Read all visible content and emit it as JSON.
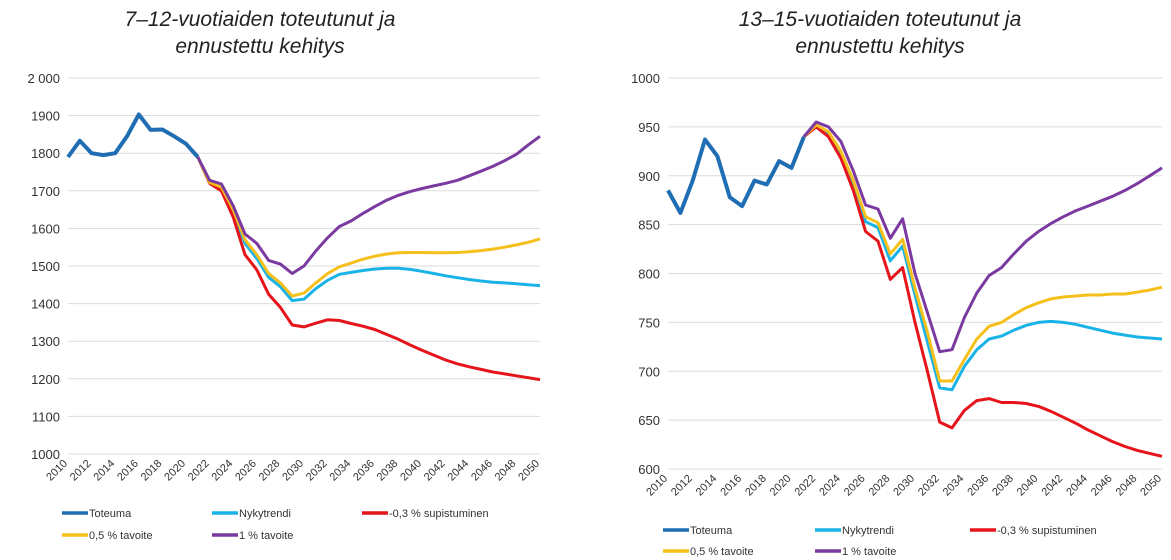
{
  "chart_data": [
    {
      "type": "line",
      "title": "7–12-vuotiaiden toteutunut ja ennustettu kehitys",
      "categories": [
        "2010",
        null,
        "2012",
        null,
        "2014",
        null,
        "2016",
        null,
        "2018",
        null,
        "2020",
        null,
        "2022",
        null,
        "2024",
        null,
        "2026",
        null,
        "2028",
        null,
        "2030",
        null,
        "2032",
        null,
        "2034",
        null,
        "2036",
        null,
        "2038",
        null,
        "2040",
        null,
        "2042",
        null,
        "2044",
        null,
        "2046",
        null,
        "2048",
        null,
        "2050"
      ],
      "ylim": [
        1000,
        2000
      ],
      "yticks": [
        1000,
        1100,
        1200,
        1300,
        1400,
        1500,
        1600,
        1700,
        1800,
        1900,
        {
          "value": 2000,
          "label": "2 000"
        }
      ],
      "grid": true,
      "series": [
        {
          "name": "Toteuma",
          "color": "#1f6db3",
          "values": [
            1790,
            1833,
            1800,
            1795,
            1800,
            1845,
            1903,
            1862,
            1863,
            1845,
            1825,
            1790,
            null,
            null,
            null,
            null,
            null,
            null,
            null,
            null,
            null,
            null,
            null,
            null,
            null,
            null,
            null,
            null,
            null,
            null,
            null,
            null,
            null,
            null,
            null,
            null,
            null,
            null,
            null,
            null,
            null
          ]
        },
        {
          "name": "Nykytrendi",
          "color": "#1ab3e8",
          "values": [
            null,
            null,
            null,
            null,
            null,
            null,
            null,
            null,
            null,
            null,
            null,
            1790,
            1720,
            1705,
            1645,
            1560,
            1520,
            1470,
            1445,
            1408,
            1412,
            1440,
            1462,
            1478,
            1483,
            1488,
            1492,
            1494,
            1494,
            1491,
            1486,
            1480,
            1474,
            1469,
            1464,
            1460,
            1457,
            1455,
            1453,
            1450,
            1448
          ]
        },
        {
          "name": "-0,3 % supistuminen",
          "color": "#e6141b",
          "values": [
            null,
            null,
            null,
            null,
            null,
            null,
            null,
            null,
            null,
            null,
            null,
            1790,
            1720,
            1700,
            1630,
            1530,
            1490,
            1425,
            1390,
            1343,
            1338,
            1348,
            1357,
            1355,
            1347,
            1340,
            1331,
            1318,
            1305,
            1290,
            1276,
            1263,
            1250,
            1240,
            1232,
            1225,
            1218,
            1213,
            1208,
            1203,
            1198
          ]
        },
        {
          "name": "0,5 % tavoite",
          "color": "#f5c01b",
          "values": [
            null,
            null,
            null,
            null,
            null,
            null,
            null,
            null,
            null,
            null,
            null,
            1790,
            1722,
            1710,
            1650,
            1570,
            1530,
            1480,
            1455,
            1420,
            1428,
            1455,
            1480,
            1498,
            1508,
            1518,
            1526,
            1532,
            1535,
            1536,
            1536,
            1535,
            1535,
            1536,
            1538,
            1541,
            1545,
            1550,
            1556,
            1563,
            1572
          ]
        },
        {
          "name": "1 % tavoite",
          "color": "#7a3aa0",
          "values": [
            null,
            null,
            null,
            null,
            null,
            null,
            null,
            null,
            null,
            null,
            null,
            1790,
            1728,
            1718,
            1660,
            1585,
            1560,
            1515,
            1505,
            1480,
            1500,
            1540,
            1575,
            1605,
            1620,
            1640,
            1658,
            1675,
            1688,
            1698,
            1706,
            1713,
            1720,
            1728,
            1740,
            1752,
            1765,
            1780,
            1797,
            1822,
            1845
          ]
        }
      ]
    },
    {
      "type": "line",
      "title": "13–15-vuotiaiden toteutunut ja ennustettu kehitys",
      "categories": [
        "2010",
        null,
        "2012",
        null,
        "2014",
        null,
        "2016",
        null,
        "2018",
        null,
        "2020",
        null,
        "2022",
        null,
        "2024",
        null,
        "2026",
        null,
        "2028",
        null,
        "2030",
        null,
        "2032",
        null,
        "2034",
        null,
        "2036",
        null,
        "2038",
        null,
        "2040",
        null,
        "2042",
        null,
        "2044",
        null,
        "2046",
        null,
        "2048",
        null,
        "2050"
      ],
      "ylim": [
        600,
        1000
      ],
      "yticks": [
        600,
        650,
        700,
        750,
        800,
        850,
        900,
        950,
        1000
      ],
      "grid": true,
      "series": [
        {
          "name": "Toteuma",
          "color": "#1f6db3",
          "values": [
            885,
            862,
            895,
            937,
            920,
            878,
            869,
            895,
            891,
            915,
            908,
            940,
            null,
            null,
            null,
            null,
            null,
            null,
            null,
            null,
            null,
            null,
            null,
            null,
            null,
            null,
            null,
            null,
            null,
            null,
            null,
            null,
            null,
            null,
            null,
            null,
            null,
            null,
            null,
            null,
            null
          ]
        },
        {
          "name": "Nykytrendi",
          "color": "#1ab3e8",
          "values": [
            null,
            null,
            null,
            null,
            null,
            null,
            null,
            null,
            null,
            null,
            null,
            940,
            951,
            943,
            922,
            892,
            853,
            847,
            813,
            828,
            778,
            730,
            683,
            681,
            705,
            722,
            733,
            736,
            742,
            747,
            750,
            751,
            750,
            748,
            745,
            742,
            739,
            737,
            735,
            734,
            733
          ]
        },
        {
          "name": "-0,3 % supistuminen",
          "color": "#e6141b",
          "values": [
            null,
            null,
            null,
            null,
            null,
            null,
            null,
            null,
            null,
            null,
            null,
            940,
            950,
            940,
            918,
            885,
            843,
            833,
            794,
            806,
            750,
            700,
            648,
            642,
            660,
            670,
            672,
            668,
            668,
            667,
            664,
            659,
            653,
            647,
            640,
            634,
            628,
            623,
            619,
            616,
            613
          ]
        },
        {
          "name": "0,5 % tavoite",
          "color": "#f5c01b",
          "values": [
            null,
            null,
            null,
            null,
            null,
            null,
            null,
            null,
            null,
            null,
            null,
            940,
            952,
            945,
            925,
            895,
            858,
            852,
            820,
            835,
            785,
            740,
            690,
            690,
            712,
            733,
            746,
            750,
            758,
            765,
            770,
            774,
            776,
            777,
            778,
            778,
            779,
            779,
            781,
            783,
            786
          ]
        },
        {
          "name": "1 % tavoite",
          "color": "#7a3aa0",
          "values": [
            null,
            null,
            null,
            null,
            null,
            null,
            null,
            null,
            null,
            null,
            null,
            940,
            955,
            950,
            935,
            905,
            870,
            866,
            836,
            856,
            800,
            760,
            720,
            722,
            755,
            780,
            798,
            806,
            820,
            833,
            843,
            851,
            858,
            864,
            869,
            874,
            879,
            885,
            892,
            900,
            908
          ]
        }
      ]
    }
  ]
}
